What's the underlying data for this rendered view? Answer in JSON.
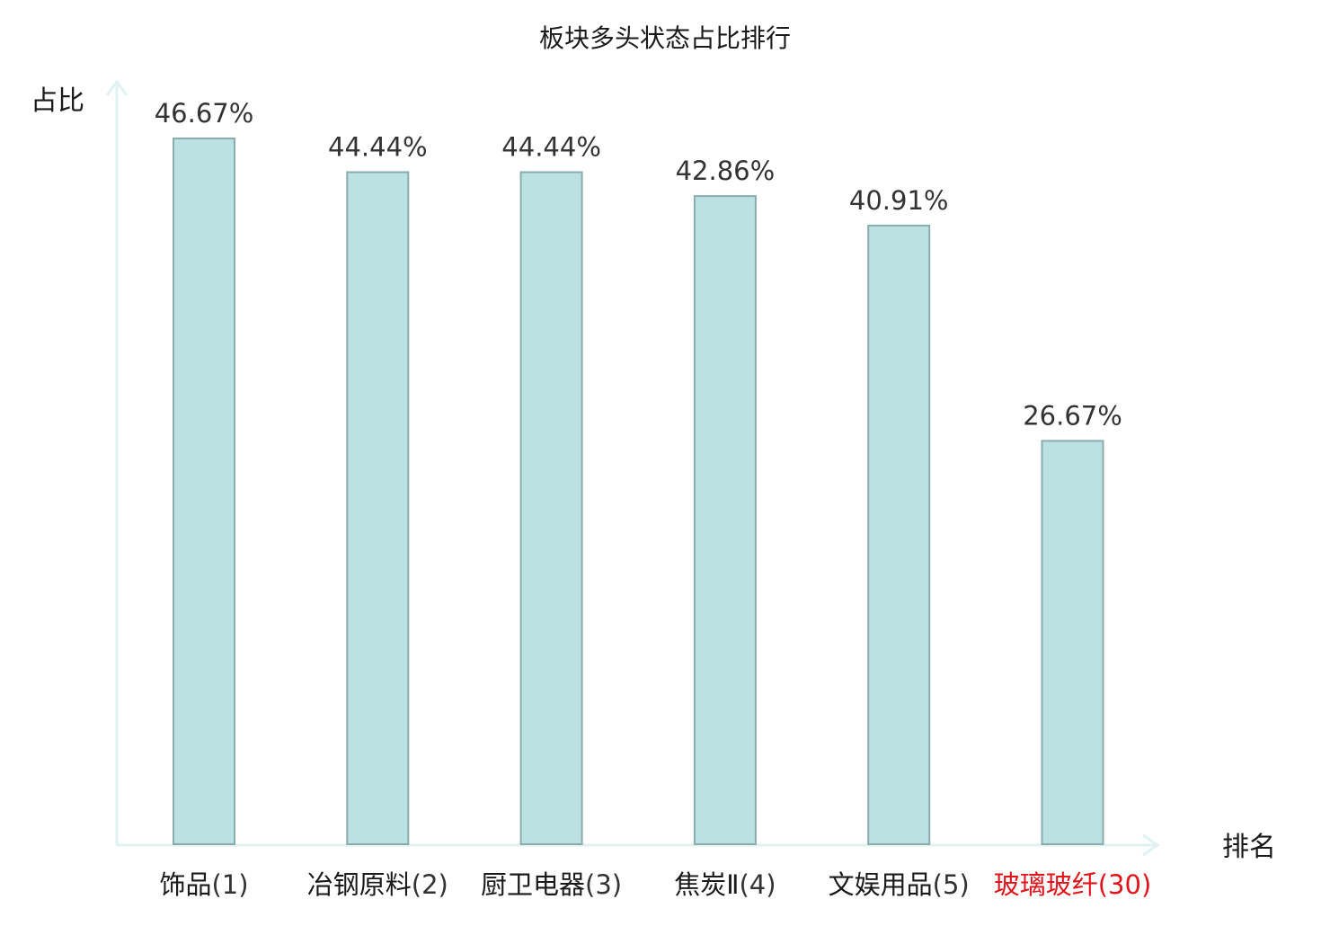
{
  "chart_data": {
    "type": "bar",
    "title": "板块多头状态占比排行",
    "ylabel": "占比",
    "xlabel": "排名",
    "ylim": [
      0,
      50
    ],
    "unit": "%",
    "grid": false,
    "categories": [
      {
        "name": "饰品",
        "rank": "(1)",
        "highlight": false
      },
      {
        "name": "冶钢原料",
        "rank": "(2)",
        "highlight": false
      },
      {
        "name": "厨卫电器",
        "rank": "(3)",
        "highlight": false
      },
      {
        "name": "焦炭Ⅱ",
        "rank": "(4)",
        "highlight": false
      },
      {
        "name": "文娱用品",
        "rank": "(5)",
        "highlight": false
      },
      {
        "name": "玻璃玻纤",
        "rank": "(30)",
        "highlight": true
      }
    ],
    "values": [
      46.67,
      44.44,
      44.44,
      42.86,
      40.91,
      26.67
    ],
    "value_labels": [
      "46.67%",
      "44.44%",
      "44.44%",
      "42.86%",
      "40.91%",
      "26.67%"
    ]
  },
  "colors": {
    "bar_fill": "#bce1e3",
    "bar_stroke": "#8aacad",
    "axis": "#dff2ef",
    "text": "#1a1a1a",
    "rank_text": "#333333",
    "highlight": "#e0141b"
  }
}
